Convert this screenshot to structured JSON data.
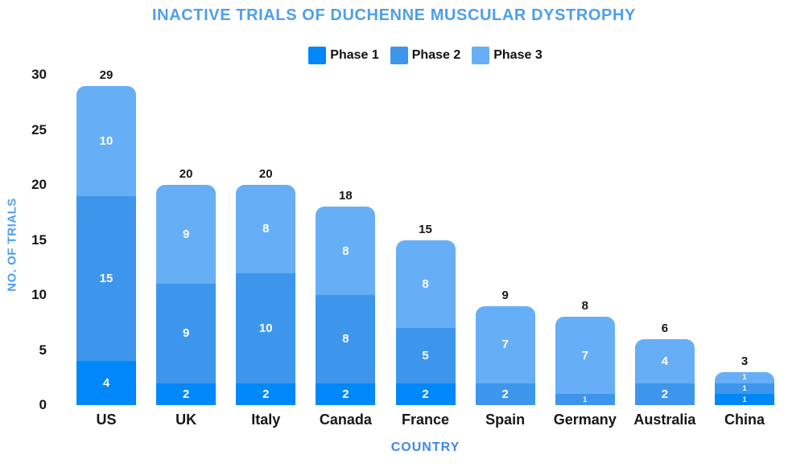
{
  "title": "INACTIVE TRIALS OF DUCHENNE MUSCULAR DYSTROPHY",
  "colors": {
    "phase1": "#0087F9",
    "phase2": "#3D96EC",
    "phase3": "#66AFF6",
    "title_blue": "#4C9FEE",
    "xlabel_blue": "#4187EA",
    "tick_text": "#161616",
    "segment_text": "#FFFFFF",
    "background": "#FFFFFF"
  },
  "legend": {
    "items": [
      {
        "label": "Phase 1",
        "color": "#0087F9"
      },
      {
        "label": "Phase 2",
        "color": "#3D96EC"
      },
      {
        "label": "Phase 3",
        "color": "#66AFF6"
      }
    ]
  },
  "chart_data": {
    "type": "bar",
    "stacked": true,
    "title": "INACTIVE TRIALS OF DUCHENNE MUSCULAR DYSTROPHY",
    "xlabel": "COUNTRY",
    "ylabel": "NO. OF TRIALS",
    "categories": [
      "US",
      "UK",
      "Italy",
      "Canada",
      "France",
      "Spain",
      "Germany",
      "Australia",
      "China"
    ],
    "series": [
      {
        "name": "Phase 1",
        "color": "#0087F9",
        "values": [
          4,
          2,
          2,
          2,
          2,
          0,
          0,
          0,
          1
        ]
      },
      {
        "name": "Phase 2",
        "color": "#3D96EC",
        "values": [
          15,
          9,
          10,
          8,
          5,
          2,
          1,
          2,
          1
        ]
      },
      {
        "name": "Phase 3",
        "color": "#66AFF6",
        "values": [
          10,
          9,
          8,
          8,
          8,
          7,
          7,
          4,
          1
        ]
      }
    ],
    "totals": [
      29,
      20,
      20,
      18,
      15,
      9,
      8,
      6,
      3
    ],
    "ylim": [
      0,
      30
    ],
    "yticks": [
      0,
      5,
      10,
      15,
      20,
      25,
      30
    ],
    "grid": false,
    "legend_position": "top-center"
  }
}
